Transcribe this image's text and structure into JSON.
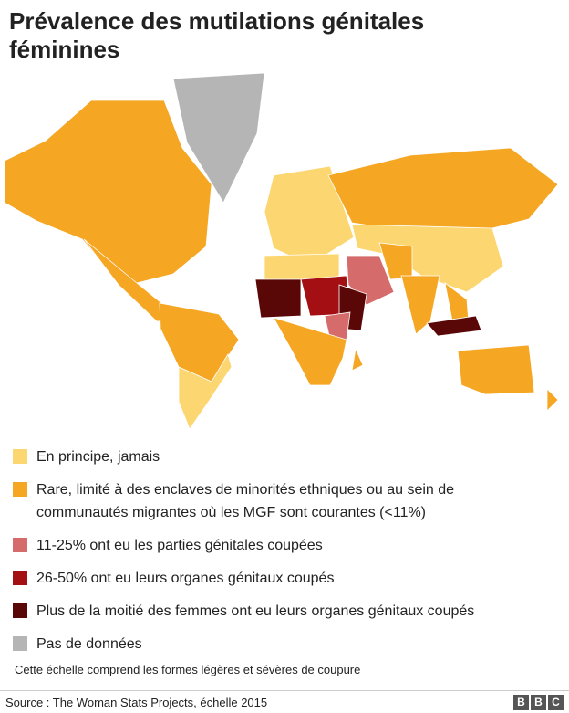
{
  "header": {
    "title": "Prévalence des mutilations génitales féminines"
  },
  "legend": [
    {
      "label": "En principe, jamais",
      "color": "#fcd670"
    },
    {
      "label": "Rare, limité à des enclaves de minorités ethniques ou au sein de communautés migrantes où les MGF sont courantes (<11%)",
      "color": "#f5a623"
    },
    {
      "label": "11-25% ont eu les parties génitales coupées",
      "color": "#d56b6b"
    },
    {
      "label": "26-50% ont eu leurs organes génitaux coupés",
      "color": "#a30f12"
    },
    {
      "label": "Plus de la moitié des femmes ont eu leurs organes génitaux coupés",
      "color": "#5a0707"
    },
    {
      "label": "Pas de données",
      "color": "#b5b5b5"
    }
  ],
  "note": "Cette échelle comprend les formes légères et sévères de coupure",
  "footer": {
    "source": "Source : The Woman Stats Projects, échelle 2015",
    "logo": [
      "B",
      "B",
      "C"
    ]
  }
}
